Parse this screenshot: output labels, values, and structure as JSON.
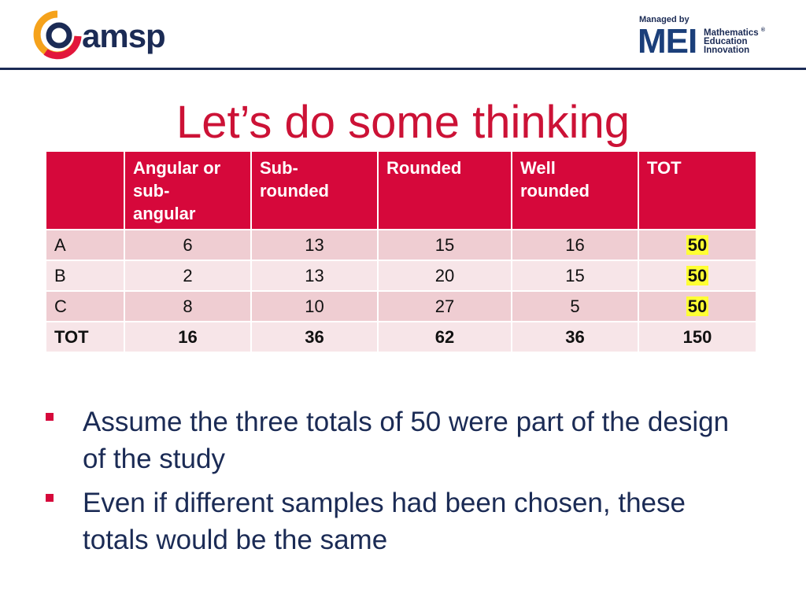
{
  "header": {
    "logo_left": "amsp",
    "managed_by": "Managed by",
    "logo_right": "MEI",
    "tagline": [
      "Mathematics",
      "Education",
      "Innovation"
    ],
    "registered": "®"
  },
  "title": "Let’s do some thinking",
  "table": {
    "header": [
      "Angular or sub-angular",
      "Sub-rounded",
      "Rounded",
      "Well rounded",
      "TOT"
    ],
    "rows": [
      [
        "A",
        6,
        13,
        15,
        16,
        50
      ],
      [
        "B",
        2,
        13,
        20,
        15,
        50
      ],
      [
        "C",
        8,
        10,
        27,
        5,
        50
      ],
      [
        "TOT",
        16,
        36,
        62,
        36,
        150
      ]
    ]
  },
  "bullets": [
    "Assume the three totals of 50 were part of the design of the study",
    "Even if different samples had been chosen, these totals would be the same"
  ]
}
